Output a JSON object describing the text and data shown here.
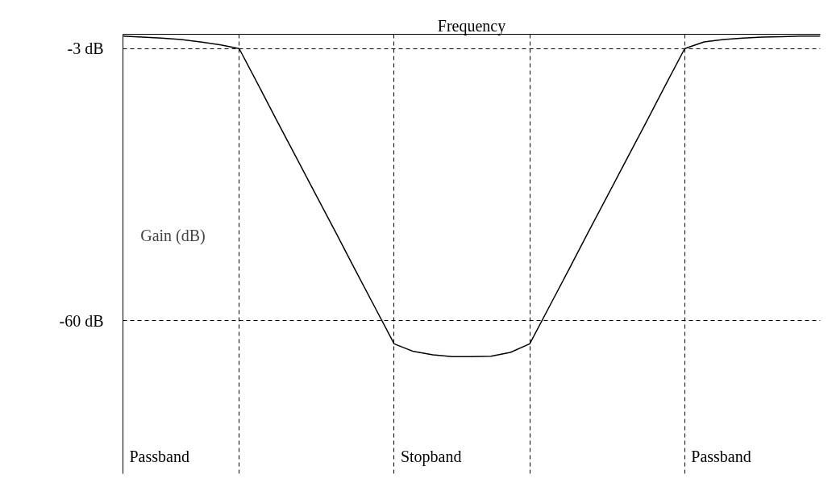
{
  "chart_data": {
    "type": "line",
    "xlabel": "Frequency",
    "ylabel": "Gain (dB)",
    "categories": [
      null,
      null,
      null,
      null,
      null,
      null,
      null,
      null,
      null,
      null,
      null,
      null,
      null,
      null,
      null,
      null,
      null,
      null,
      null,
      null,
      null,
      null,
      null,
      null,
      null,
      null,
      null,
      null,
      null,
      null,
      null,
      null,
      null,
      null,
      null,
      null,
      null
    ],
    "series": [
      {
        "color": "#000000",
        "values": [
          -0.4,
          -0.6,
          -0.8,
          -1.1,
          -1.6,
          -2.2,
          -3,
          -10.7,
          -18.5,
          -26.2,
          -33.9,
          -41.6,
          -49.4,
          -57.1,
          -64.8,
          -66.4,
          -67.1,
          -67.5,
          -67.5,
          -67.4,
          -66.6,
          -64.8,
          -57.1,
          -49.4,
          -41.6,
          -33.9,
          -26.2,
          -18.5,
          -10.7,
          -3,
          -1.6,
          -1.1,
          -0.8,
          -0.6,
          -0.5,
          -0.4,
          -0.4
        ]
      }
    ],
    "ylim": [
      -92,
      0
    ],
    "yticks": [
      {
        "value": -3,
        "label": "-3 dB"
      },
      {
        "value": -60,
        "label": "-60 dB"
      }
    ],
    "grid": true,
    "marker": "none",
    "line_style": "solid",
    "annotations": [
      "Passband",
      "Stopband",
      "Passband"
    ]
  }
}
